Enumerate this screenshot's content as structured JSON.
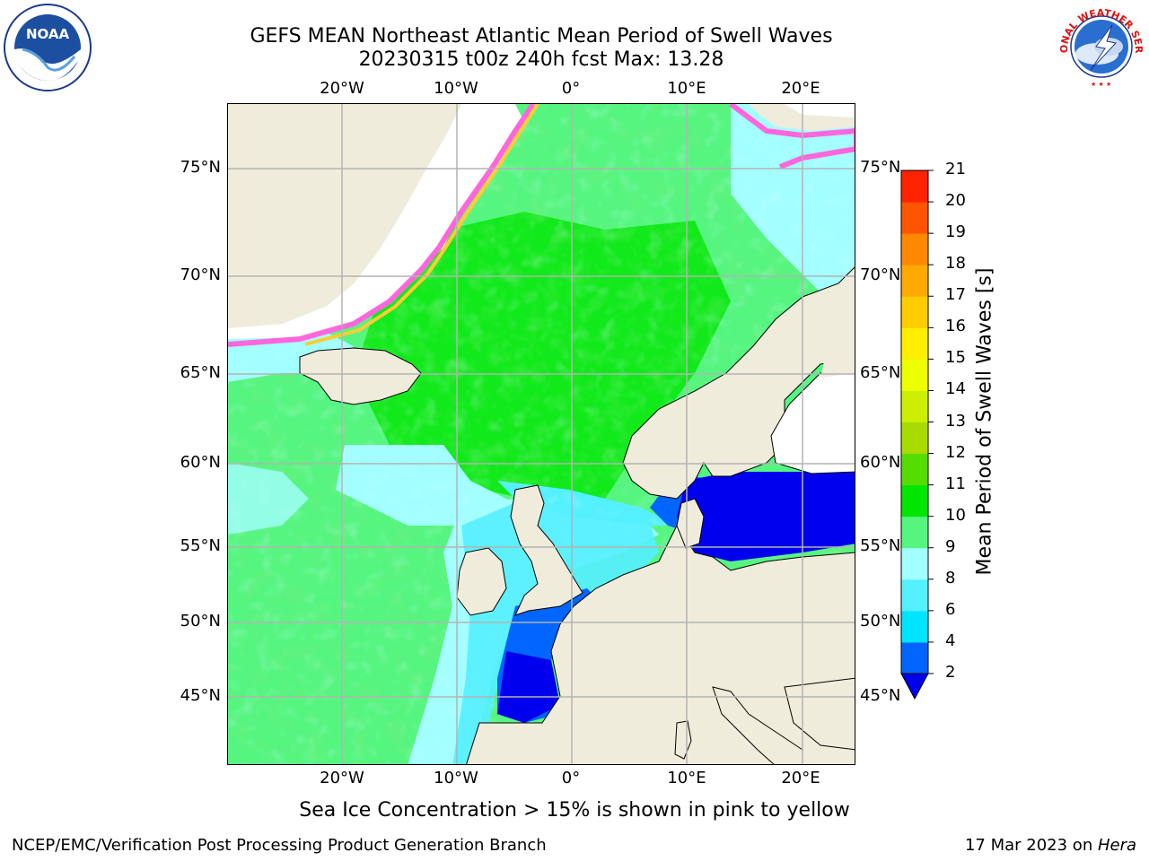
{
  "title": {
    "line1": "GEFS MEAN Northeast Atlantic Mean Period of Swell Waves",
    "line2": "20230315 t00z 240h fcst   Max: 13.28"
  },
  "logos": {
    "left": {
      "name": "noaa-logo",
      "text": "NOAA"
    },
    "right": {
      "name": "nws-logo",
      "text": "NATIONAL WEATHER SERVICE"
    }
  },
  "map": {
    "lon_labels": [
      "20°W",
      "10°W",
      "0°",
      "10°E",
      "20°E"
    ],
    "lat_labels": [
      "75°N",
      "70°N",
      "65°N",
      "60°N",
      "55°N",
      "50°N",
      "45°N"
    ],
    "colors": {
      "land": "#efecdb",
      "ice": "#ffffff",
      "grid": "#b3b3b3",
      "coast": "#000000"
    }
  },
  "colorbar": {
    "title": "Mean Period of Swell Waves [s]",
    "ticks": [
      "2",
      "4",
      "6",
      "8",
      "9",
      "10",
      "11",
      "12",
      "13",
      "14",
      "15",
      "16",
      "17",
      "18",
      "19",
      "20",
      "21"
    ],
    "colors": [
      "#0066ff",
      "#00e5ff",
      "#55f0ff",
      "#a3ffff",
      "#55f580",
      "#00e600",
      "#55dd00",
      "#a8dc00",
      "#ccee00",
      "#eeff00",
      "#ffee00",
      "#ffcc00",
      "#ffaa00",
      "#ff8800",
      "#ff5500",
      "#ff2200"
    ],
    "extend_color": "#0000ee"
  },
  "footnote": "Sea Ice Concentration > 15% is shown in pink to yellow",
  "credit_left": "NCEP/EMC/Verification Post Processing Product Generation Branch",
  "credit_right_date": "17 Mar 2023 on ",
  "credit_right_host": "Hera"
}
